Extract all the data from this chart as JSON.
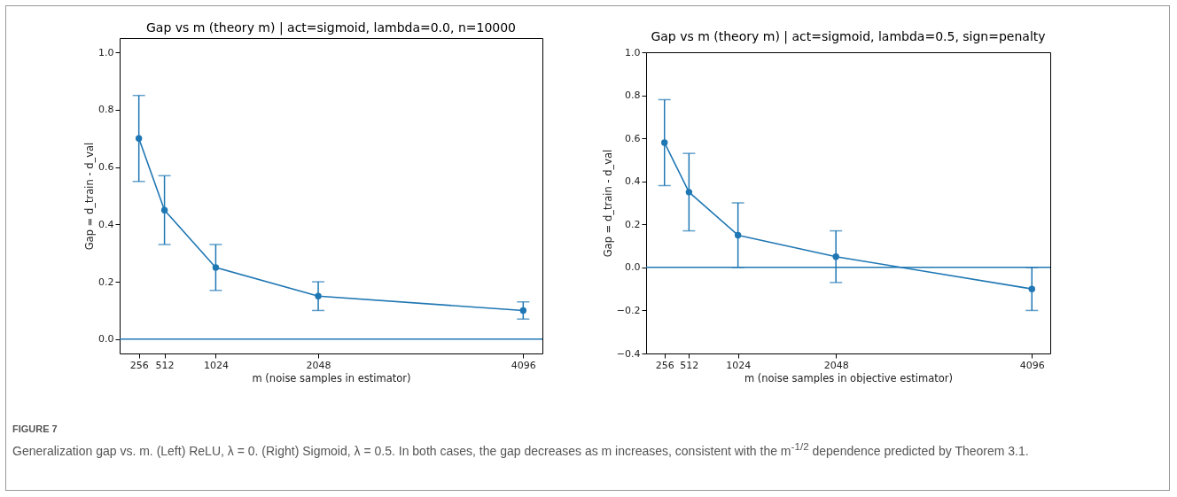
{
  "chart_data": [
    {
      "type": "line",
      "title": "Gap vs m (theory m) | act=sigmoid, lambda=0.0, n=10000",
      "xlabel": "m (noise samples in estimator)",
      "ylabel": "Gap = d_train - d_val",
      "x": [
        256,
        512,
        1024,
        2048,
        4096
      ],
      "series": [
        {
          "color": "#1f77b4",
          "values": [
            0.7,
            0.45,
            0.25,
            0.15,
            0.1
          ],
          "errors": [
            0.15,
            0.12,
            0.08,
            0.05,
            0.03
          ]
        }
      ],
      "xlim": [
        64,
        4288
      ],
      "xticks": [
        256,
        512,
        1024,
        2048,
        4096
      ],
      "ylim": [
        -0.05,
        1.05
      ],
      "yticks": [
        {
          "value": 0,
          "label": "0.0"
        },
        0.2,
        0.4,
        0.6,
        0.8,
        {
          "value": 1,
          "label": "1.0"
        }
      ],
      "ref_lines": [
        {
          "axis": "y",
          "value": 0,
          "color": "#1f77b4"
        }
      ],
      "marker": "circle",
      "line_style": "solid",
      "grid": false,
      "legend": false,
      "annotations": [
        "FIGURE 7",
        "Generalization gap vs. m. (Left) ReLU, λ = 0. (Right) Sigmoid, λ = 0.5. In both cases, the gap decreases as m increases, consistent with the m$^{-1/2}$ dependence predicted by Theorem 3.1."
      ]
    },
    {
      "type": "line",
      "title": "Gap vs m (theory m) | act=sigmoid, lambda=0.5, sign=penalty",
      "xlabel": "m (noise samples in objective estimator)",
      "ylabel": "Gap = d_train - d_val",
      "x": [
        256,
        512,
        1024,
        2048,
        4096
      ],
      "series": [
        {
          "color": "#1f77b4",
          "values": [
            0.58,
            0.35,
            0.15,
            0.05,
            -0.1
          ],
          "errors": [
            0.2,
            0.18,
            0.15,
            0.12,
            0.1
          ]
        }
      ],
      "xlim": [
        64,
        4288
      ],
      "xticks": [
        256,
        512,
        1024,
        2048,
        4096
      ],
      "ylim": [
        -0.4,
        1.0
      ],
      "yticks": [
        {
          "value": -0.4,
          "label": "−0.4"
        },
        {
          "value": -0.2,
          "label": "−0.2"
        },
        {
          "value": 0,
          "label": "0.0"
        },
        0.2,
        0.4,
        0.6,
        0.8,
        {
          "value": 1,
          "label": "1.0"
        }
      ],
      "ref_lines": [
        {
          "axis": "y",
          "value": 0,
          "color": "#1f77b4"
        }
      ],
      "marker": "circle",
      "line_style": "solid",
      "grid": false,
      "legend": false
    }
  ]
}
